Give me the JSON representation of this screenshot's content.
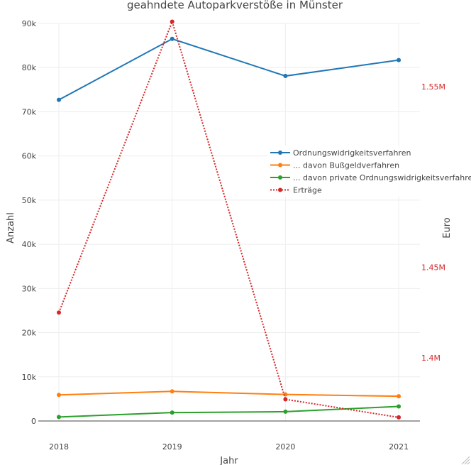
{
  "chart_data": {
    "type": "line",
    "title": "geahndete Autoparkverstöße in Münster",
    "xlabel": "Jahr",
    "ylabel": "Anzahl",
    "y2label": "Euro",
    "categories": [
      "2018",
      "2019",
      "2020",
      "2021"
    ],
    "ylim": [
      0,
      90000
    ],
    "y_ticks": [
      0,
      10000,
      20000,
      30000,
      40000,
      50000,
      60000,
      70000,
      80000,
      90000
    ],
    "y_tick_labels": [
      "0",
      "10k",
      "20k",
      "30k",
      "40k",
      "50k",
      "60k",
      "70k",
      "80k",
      "90k"
    ],
    "y2lim": [
      1365000,
      1585000
    ],
    "y2_ticks": [
      1400000,
      1450000,
      1550000
    ],
    "y2_tick_labels": [
      "1.4M",
      "1.45M",
      "1.55M"
    ],
    "series": [
      {
        "name": "Ordnungswidrigkeitsverfahren",
        "axis": "y",
        "color": "#1f77b4",
        "dash": "solid",
        "values": [
          72700,
          86500,
          78100,
          81700
        ]
      },
      {
        "name": "... davon Bußgeldverfahren",
        "axis": "y",
        "color": "#ff7f0e",
        "dash": "solid",
        "values": [
          5900,
          6700,
          6000,
          5600
        ]
      },
      {
        "name": "... davon private Ordnungswidrigkeitsverfahren",
        "axis": "y",
        "color": "#2ca02c",
        "dash": "solid",
        "values": [
          900,
          1900,
          2100,
          3300
        ]
      },
      {
        "name": "Erträge",
        "axis": "y2",
        "color": "#d62728",
        "dash": "dot",
        "values": [
          1425000,
          1586000,
          1377000,
          1367000
        ]
      }
    ],
    "legend_position": "right"
  }
}
